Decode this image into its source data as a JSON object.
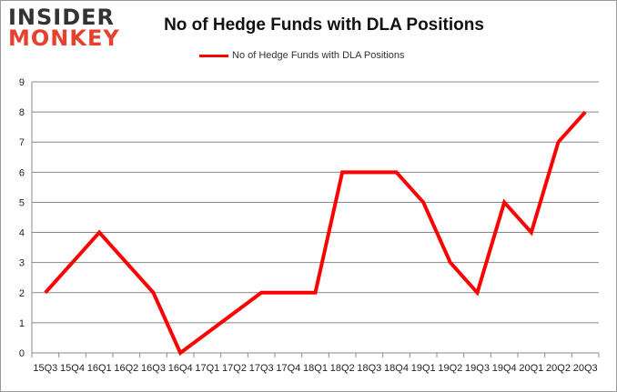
{
  "logo": {
    "line1": "INSIDER",
    "line2": "MONKEY"
  },
  "chart_data": {
    "type": "line",
    "title": "No of Hedge Funds with DLA Positions",
    "xlabel": "",
    "ylabel": "",
    "categories": [
      "15Q3",
      "15Q4",
      "16Q1",
      "16Q2",
      "16Q3",
      "16Q4",
      "17Q1",
      "17Q2",
      "17Q3",
      "17Q4",
      "18Q1",
      "18Q2",
      "18Q3",
      "18Q4",
      "19Q1",
      "19Q2",
      "19Q3",
      "19Q4",
      "20Q1",
      "20Q2",
      "20Q3"
    ],
    "series": [
      {
        "name": "No of Hedge Funds with DLA Positions",
        "color": "#ff0000",
        "values": [
          2,
          3,
          4,
          3,
          2,
          0,
          null,
          null,
          2,
          2,
          2,
          6,
          6,
          6,
          5,
          3,
          2,
          5,
          4,
          7,
          8
        ]
      }
    ],
    "ylim": [
      0,
      9
    ],
    "yticks": [
      0,
      1,
      2,
      3,
      4,
      5,
      6,
      7,
      8,
      9
    ],
    "grid": true,
    "legend": "top-center"
  }
}
